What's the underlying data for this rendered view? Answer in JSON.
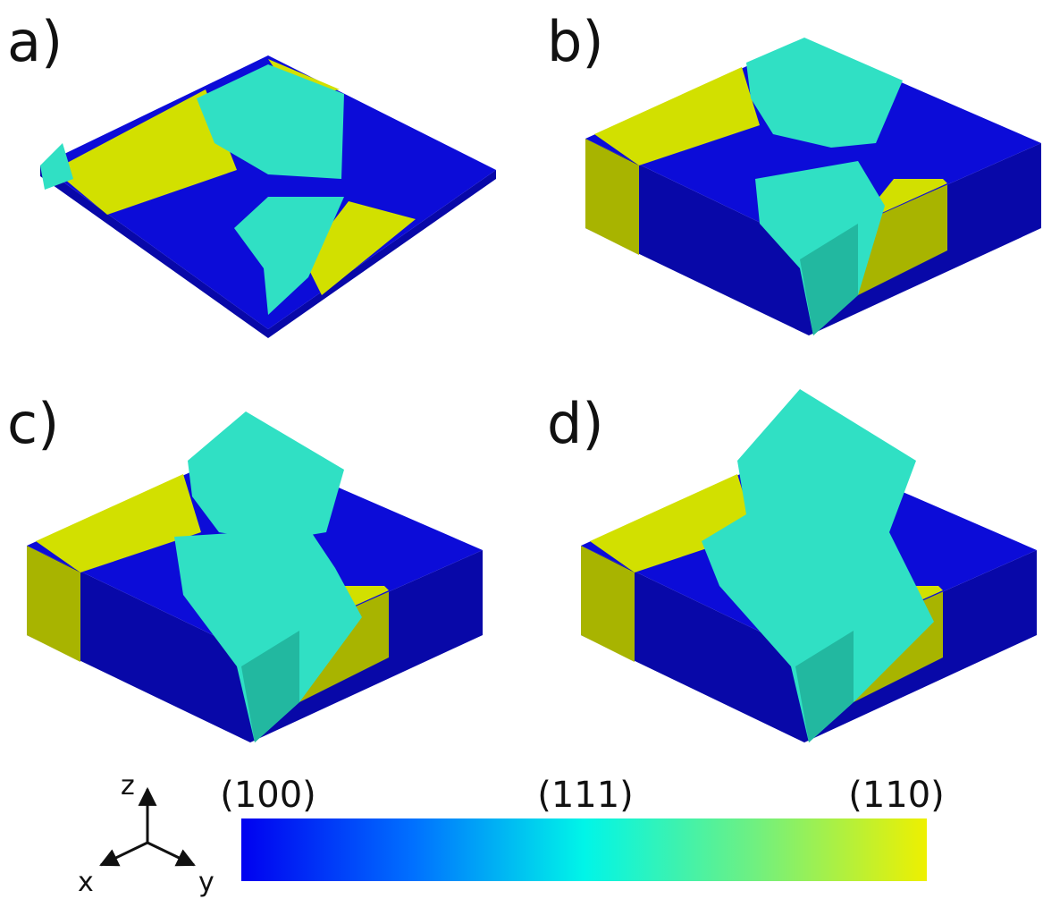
{
  "panels": [
    {
      "label": "a)"
    },
    {
      "label": "b)"
    },
    {
      "label": "c)"
    },
    {
      "label": "d)"
    }
  ],
  "colorbar": {
    "labels": [
      "(100)",
      "(111)",
      "(110)"
    ]
  },
  "axes": {
    "z": "z",
    "x": "x",
    "y": "y"
  }
}
